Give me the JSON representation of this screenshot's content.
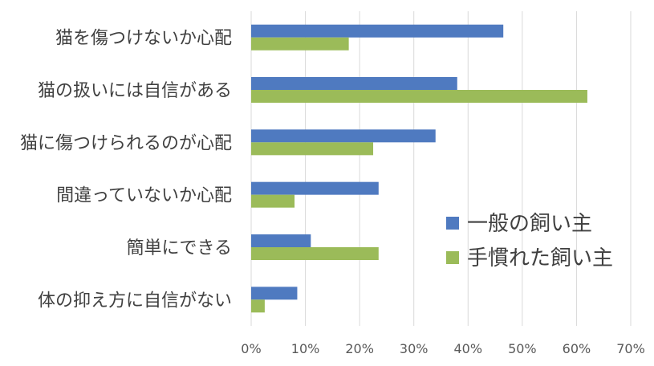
{
  "chart_data": {
    "type": "bar",
    "orientation": "horizontal",
    "categories": [
      "猫を傷つけないか心配",
      "猫の扱いには自信がある",
      "猫に傷つけられるのが心配",
      "間違っていないか心配",
      "簡単にできる",
      "体の抑え方に自信がない"
    ],
    "series": [
      {
        "name": "一般の飼い主",
        "color": "#4f7ac0",
        "values": [
          46.5,
          38,
          34,
          23.5,
          11,
          8.5
        ]
      },
      {
        "name": "手慣れた飼い主",
        "color": "#9bbb59",
        "values": [
          18,
          62,
          22.5,
          8,
          23.5,
          2.5
        ]
      }
    ],
    "xlim": [
      0,
      70
    ],
    "xticks": [
      "0%",
      "10%",
      "20%",
      "30%",
      "40%",
      "50%",
      "60%",
      "70%"
    ],
    "grid": true,
    "legend_position": "right"
  }
}
